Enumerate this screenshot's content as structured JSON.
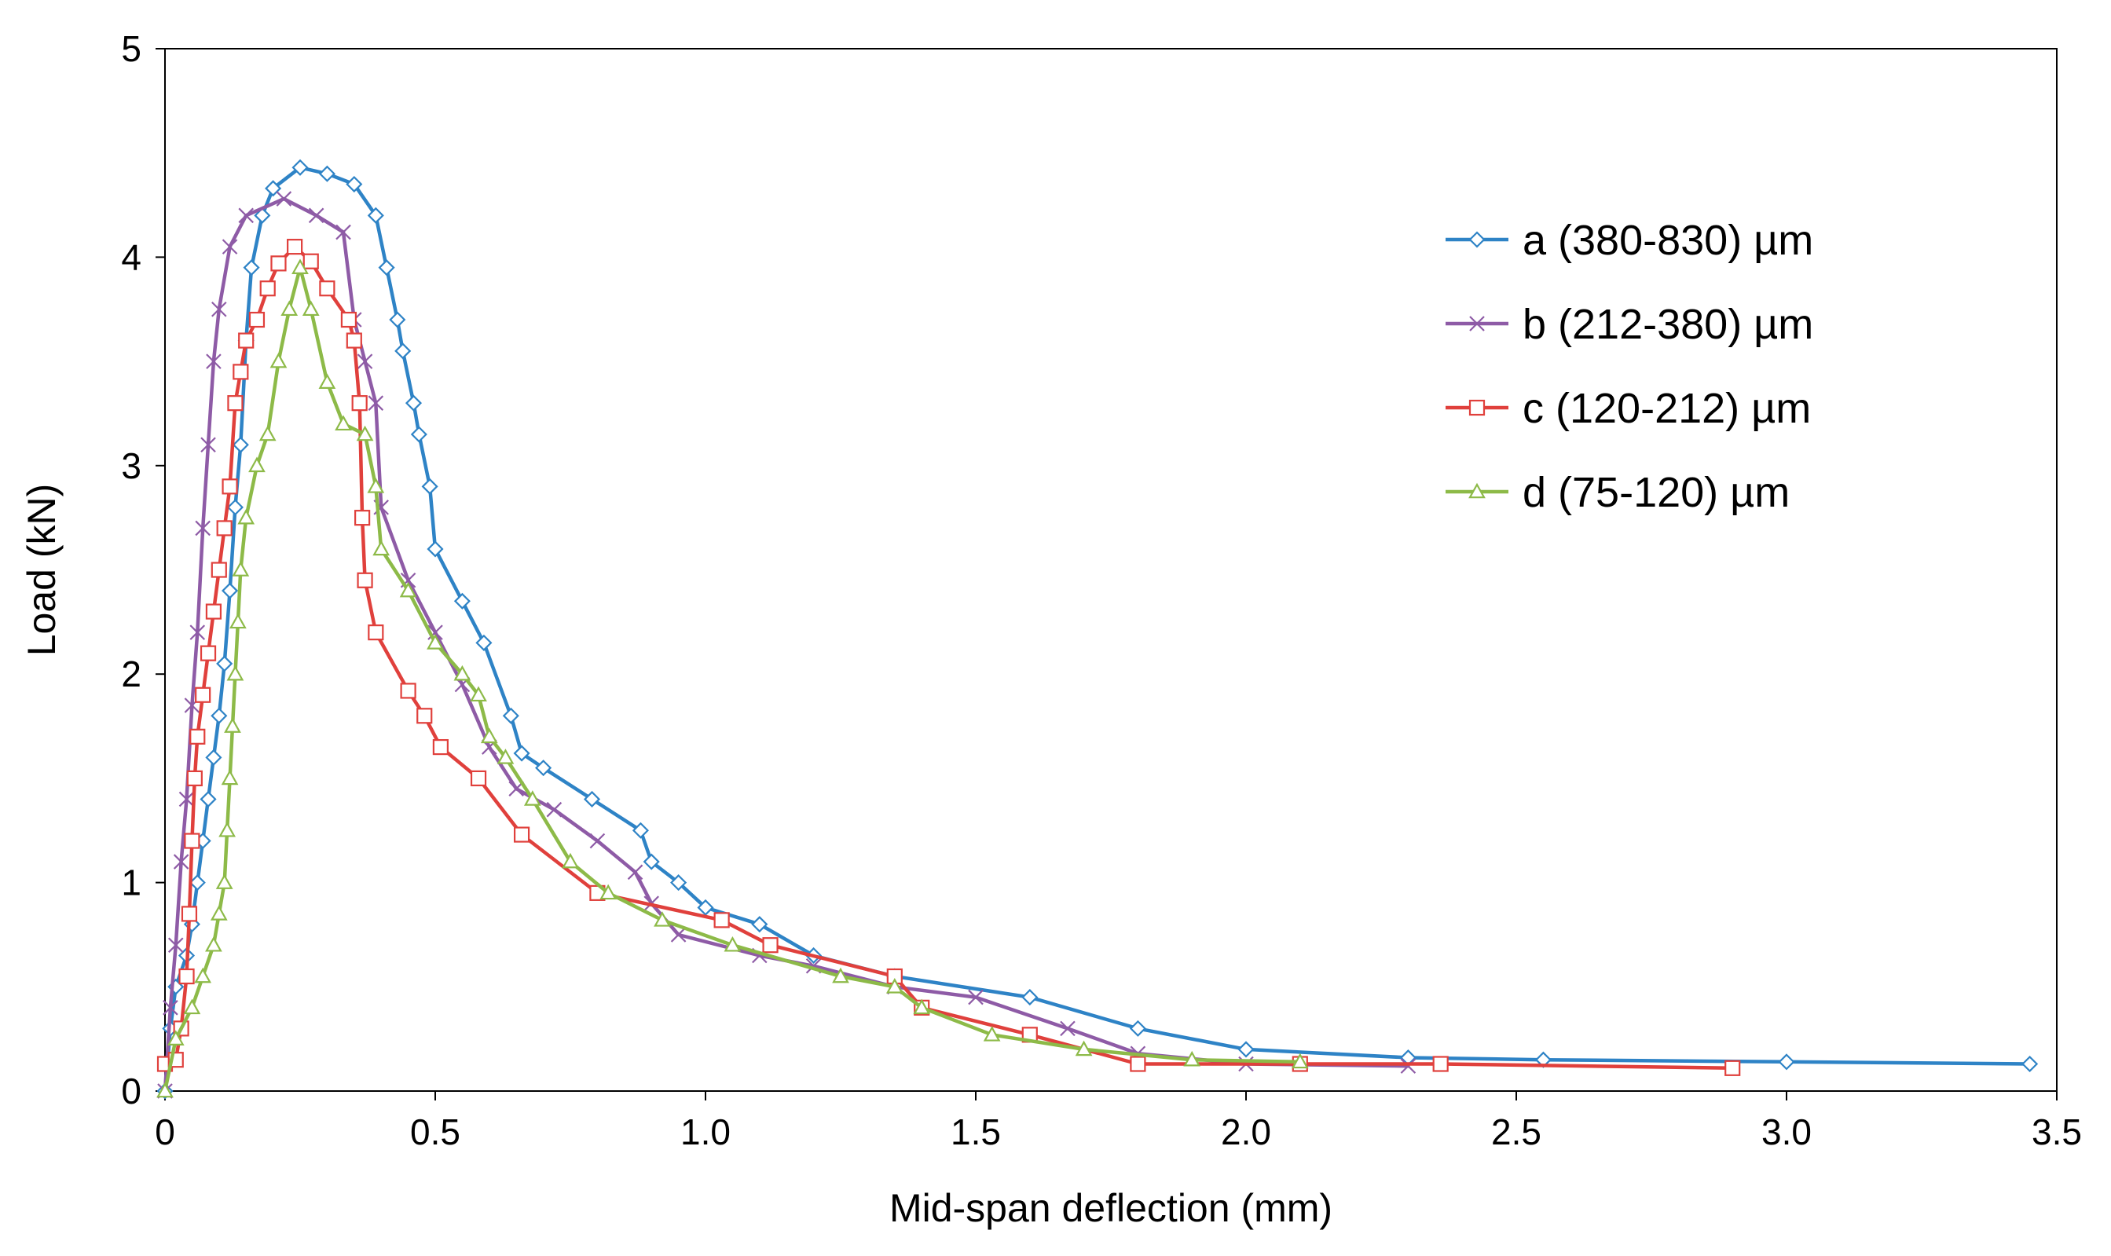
{
  "chart_data": {
    "type": "line",
    "title": "",
    "xlabel": "Mid-span deflection (mm)",
    "ylabel": "Load (kN)",
    "xlim": [
      0,
      3.5
    ],
    "ylim": [
      0,
      5
    ],
    "xticks": [
      0,
      0.5,
      1.0,
      1.5,
      2.0,
      2.5,
      3.0,
      3.5
    ],
    "xtick_labels": [
      "0",
      "0.5",
      "1.0",
      "1.5",
      "2.0",
      "2.5",
      "3.0",
      "3.5"
    ],
    "yticks": [
      0,
      1,
      2,
      3,
      4,
      5
    ],
    "ytick_labels": [
      "0",
      "1",
      "2",
      "3",
      "4",
      "5"
    ],
    "grid": false,
    "legend_position": "top-right",
    "series": [
      {
        "name": "a (380-830) µm",
        "color": "#2E83C6",
        "marker": "diamond",
        "points": [
          [
            0,
            0
          ],
          [
            0.01,
            0.3
          ],
          [
            0.02,
            0.5
          ],
          [
            0.04,
            0.65
          ],
          [
            0.05,
            0.8
          ],
          [
            0.06,
            1.0
          ],
          [
            0.07,
            1.2
          ],
          [
            0.08,
            1.4
          ],
          [
            0.09,
            1.6
          ],
          [
            0.1,
            1.8
          ],
          [
            0.11,
            2.05
          ],
          [
            0.12,
            2.4
          ],
          [
            0.13,
            2.8
          ],
          [
            0.14,
            3.1
          ],
          [
            0.15,
            3.6
          ],
          [
            0.16,
            3.95
          ],
          [
            0.18,
            4.2
          ],
          [
            0.2,
            4.33
          ],
          [
            0.25,
            4.43
          ],
          [
            0.3,
            4.4
          ],
          [
            0.35,
            4.35
          ],
          [
            0.39,
            4.2
          ],
          [
            0.41,
            3.95
          ],
          [
            0.43,
            3.7
          ],
          [
            0.44,
            3.55
          ],
          [
            0.46,
            3.3
          ],
          [
            0.47,
            3.15
          ],
          [
            0.49,
            2.9
          ],
          [
            0.5,
            2.6
          ],
          [
            0.55,
            2.35
          ],
          [
            0.59,
            2.15
          ],
          [
            0.64,
            1.8
          ],
          [
            0.66,
            1.62
          ],
          [
            0.7,
            1.55
          ],
          [
            0.79,
            1.4
          ],
          [
            0.88,
            1.25
          ],
          [
            0.9,
            1.1
          ],
          [
            0.95,
            1.0
          ],
          [
            1.0,
            0.88
          ],
          [
            1.1,
            0.8
          ],
          [
            1.2,
            0.65
          ],
          [
            1.35,
            0.55
          ],
          [
            1.6,
            0.45
          ],
          [
            1.8,
            0.3
          ],
          [
            2.0,
            0.2
          ],
          [
            2.3,
            0.16
          ],
          [
            2.55,
            0.15
          ],
          [
            3.0,
            0.14
          ],
          [
            3.45,
            0.13
          ]
        ]
      },
      {
        "name": "b (212-380) µm",
        "color": "#8E5BA6",
        "marker": "x",
        "points": [
          [
            0,
            0
          ],
          [
            0.01,
            0.4
          ],
          [
            0.02,
            0.7
          ],
          [
            0.03,
            1.1
          ],
          [
            0.04,
            1.4
          ],
          [
            0.05,
            1.85
          ],
          [
            0.06,
            2.2
          ],
          [
            0.07,
            2.7
          ],
          [
            0.08,
            3.1
          ],
          [
            0.09,
            3.5
          ],
          [
            0.1,
            3.75
          ],
          [
            0.12,
            4.05
          ],
          [
            0.15,
            4.2
          ],
          [
            0.22,
            4.28
          ],
          [
            0.28,
            4.2
          ],
          [
            0.33,
            4.12
          ],
          [
            0.35,
            3.7
          ],
          [
            0.37,
            3.5
          ],
          [
            0.39,
            3.3
          ],
          [
            0.4,
            2.8
          ],
          [
            0.45,
            2.45
          ],
          [
            0.5,
            2.2
          ],
          [
            0.55,
            1.95
          ],
          [
            0.6,
            1.65
          ],
          [
            0.65,
            1.45
          ],
          [
            0.72,
            1.35
          ],
          [
            0.8,
            1.2
          ],
          [
            0.87,
            1.05
          ],
          [
            0.9,
            0.9
          ],
          [
            0.95,
            0.75
          ],
          [
            1.1,
            0.65
          ],
          [
            1.2,
            0.6
          ],
          [
            1.35,
            0.5
          ],
          [
            1.5,
            0.45
          ],
          [
            1.67,
            0.3
          ],
          [
            1.8,
            0.18
          ],
          [
            2.0,
            0.13
          ],
          [
            2.3,
            0.12
          ]
        ]
      },
      {
        "name": "c (120-212) µm",
        "color": "#E0403C",
        "marker": "square",
        "points": [
          [
            0,
            0.13
          ],
          [
            0.02,
            0.15
          ],
          [
            0.03,
            0.3
          ],
          [
            0.04,
            0.55
          ],
          [
            0.045,
            0.85
          ],
          [
            0.05,
            1.2
          ],
          [
            0.055,
            1.5
          ],
          [
            0.06,
            1.7
          ],
          [
            0.07,
            1.9
          ],
          [
            0.08,
            2.1
          ],
          [
            0.09,
            2.3
          ],
          [
            0.1,
            2.5
          ],
          [
            0.11,
            2.7
          ],
          [
            0.12,
            2.9
          ],
          [
            0.13,
            3.3
          ],
          [
            0.14,
            3.45
          ],
          [
            0.15,
            3.6
          ],
          [
            0.17,
            3.7
          ],
          [
            0.19,
            3.85
          ],
          [
            0.21,
            3.97
          ],
          [
            0.24,
            4.05
          ],
          [
            0.27,
            3.98
          ],
          [
            0.3,
            3.85
          ],
          [
            0.34,
            3.7
          ],
          [
            0.35,
            3.6
          ],
          [
            0.36,
            3.3
          ],
          [
            0.365,
            2.75
          ],
          [
            0.37,
            2.45
          ],
          [
            0.39,
            2.2
          ],
          [
            0.45,
            1.92
          ],
          [
            0.48,
            1.8
          ],
          [
            0.51,
            1.65
          ],
          [
            0.58,
            1.5
          ],
          [
            0.66,
            1.23
          ],
          [
            0.8,
            0.95
          ],
          [
            1.03,
            0.82
          ],
          [
            1.12,
            0.7
          ],
          [
            1.35,
            0.55
          ],
          [
            1.4,
            0.4
          ],
          [
            1.6,
            0.27
          ],
          [
            1.8,
            0.13
          ],
          [
            2.1,
            0.13
          ],
          [
            2.36,
            0.13
          ],
          [
            2.9,
            0.11
          ]
        ]
      },
      {
        "name": "d (75-120) µm",
        "color": "#8DBA48",
        "marker": "triangle",
        "points": [
          [
            0,
            0
          ],
          [
            0.02,
            0.25
          ],
          [
            0.05,
            0.4
          ],
          [
            0.07,
            0.55
          ],
          [
            0.09,
            0.7
          ],
          [
            0.1,
            0.85
          ],
          [
            0.11,
            1.0
          ],
          [
            0.115,
            1.25
          ],
          [
            0.12,
            1.5
          ],
          [
            0.125,
            1.75
          ],
          [
            0.13,
            2.0
          ],
          [
            0.135,
            2.25
          ],
          [
            0.14,
            2.5
          ],
          [
            0.15,
            2.75
          ],
          [
            0.17,
            3.0
          ],
          [
            0.19,
            3.15
          ],
          [
            0.21,
            3.5
          ],
          [
            0.23,
            3.75
          ],
          [
            0.25,
            3.95
          ],
          [
            0.27,
            3.75
          ],
          [
            0.3,
            3.4
          ],
          [
            0.33,
            3.2
          ],
          [
            0.37,
            3.15
          ],
          [
            0.39,
            2.9
          ],
          [
            0.4,
            2.6
          ],
          [
            0.45,
            2.4
          ],
          [
            0.5,
            2.15
          ],
          [
            0.55,
            2.0
          ],
          [
            0.58,
            1.9
          ],
          [
            0.6,
            1.7
          ],
          [
            0.63,
            1.6
          ],
          [
            0.68,
            1.4
          ],
          [
            0.75,
            1.1
          ],
          [
            0.82,
            0.95
          ],
          [
            0.92,
            0.82
          ],
          [
            1.05,
            0.7
          ],
          [
            1.25,
            0.55
          ],
          [
            1.35,
            0.5
          ],
          [
            1.4,
            0.4
          ],
          [
            1.53,
            0.27
          ],
          [
            1.7,
            0.2
          ],
          [
            1.9,
            0.15
          ],
          [
            2.1,
            0.14
          ]
        ]
      }
    ]
  }
}
